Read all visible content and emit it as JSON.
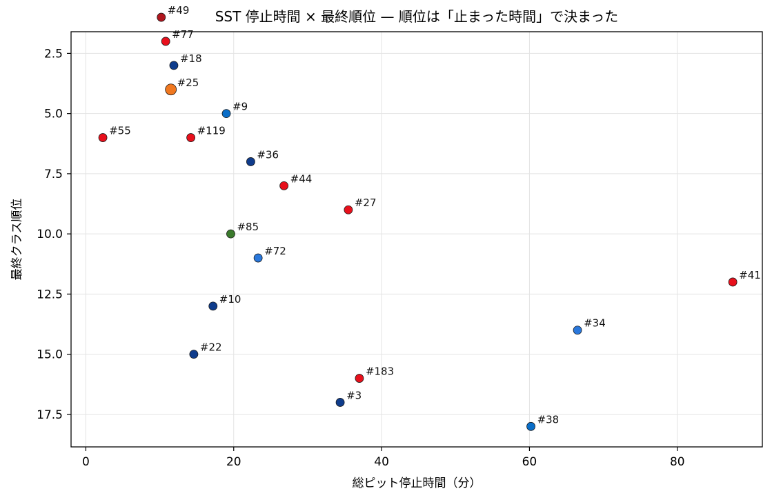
{
  "chart_data": {
    "type": "scatter",
    "title": "SST 停止時間 × 最終順位 — 順位は「止まった時間」で決まった",
    "xlabel": "総ピット停止時間（分）",
    "ylabel": "最終クラス順位",
    "xlim": [
      -2,
      91.5
    ],
    "ylim": [
      18.85,
      1.6
    ],
    "y_inverted": true,
    "grid": true,
    "xticks": [
      0,
      20,
      40,
      60,
      80
    ],
    "yticks": [
      2.5,
      5.0,
      7.5,
      10.0,
      12.5,
      15.0,
      17.5
    ],
    "xtick_labels": [
      "0",
      "20",
      "40",
      "60",
      "80"
    ],
    "ytick_labels": [
      "2.5",
      "5.0",
      "7.5",
      "10.0",
      "12.5",
      "15.0",
      "17.5"
    ],
    "points": [
      {
        "label": "#49",
        "x": 10.2,
        "y": 1,
        "color": "#b0161e"
      },
      {
        "label": "#77",
        "x": 10.8,
        "y": 2,
        "color": "#e8101c"
      },
      {
        "label": "#18",
        "x": 11.9,
        "y": 3,
        "color": "#0f3c8c"
      },
      {
        "label": "#25",
        "x": 11.5,
        "y": 4,
        "color": "#f07820",
        "large": true
      },
      {
        "label": "#9",
        "x": 19.0,
        "y": 5,
        "color": "#0a6ec8"
      },
      {
        "label": "#55",
        "x": 2.3,
        "y": 6,
        "color": "#e8101c"
      },
      {
        "label": "#119",
        "x": 14.2,
        "y": 6,
        "color": "#e8101c"
      },
      {
        "label": "#36",
        "x": 22.3,
        "y": 7,
        "color": "#0f3c8c"
      },
      {
        "label": "#44",
        "x": 26.8,
        "y": 8,
        "color": "#e8101c"
      },
      {
        "label": "#27",
        "x": 35.5,
        "y": 9,
        "color": "#e8101c"
      },
      {
        "label": "#85",
        "x": 19.6,
        "y": 10,
        "color": "#3a7a2c"
      },
      {
        "label": "#72",
        "x": 23.3,
        "y": 11,
        "color": "#2a78dc"
      },
      {
        "label": "#41",
        "x": 87.5,
        "y": 12,
        "color": "#e8101c"
      },
      {
        "label": "#10",
        "x": 17.2,
        "y": 13,
        "color": "#0f3c8c"
      },
      {
        "label": "#34",
        "x": 66.5,
        "y": 14,
        "color": "#2a78dc"
      },
      {
        "label": "#22",
        "x": 14.6,
        "y": 15,
        "color": "#0f3c8c"
      },
      {
        "label": "#183",
        "x": 37.0,
        "y": 16,
        "color": "#e8101c"
      },
      {
        "label": "#3",
        "x": 34.4,
        "y": 17,
        "color": "#0f3c8c"
      },
      {
        "label": "#38",
        "x": 60.2,
        "y": 18,
        "color": "#0a6ec8"
      }
    ]
  }
}
